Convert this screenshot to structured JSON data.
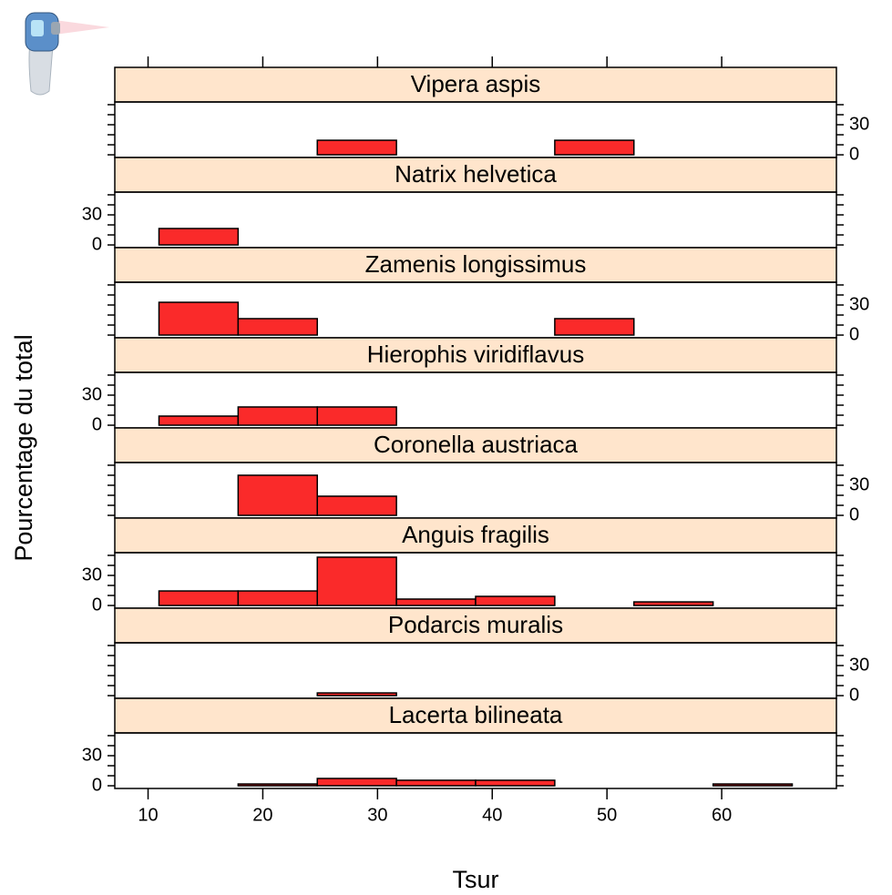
{
  "chart_data": {
    "type": "histogram",
    "xlabel": "Tsur",
    "ylabel": "Pourcentage du total",
    "xlim": [
      7.1,
      70
    ],
    "xticks": [
      10,
      20,
      30,
      40,
      50,
      60
    ],
    "ylim": [
      -2.7,
      52.7
    ],
    "yticks": [
      0,
      30
    ],
    "minor_yticks": [
      10,
      20,
      40,
      50
    ],
    "bins": [
      10.95,
      17.85,
      24.75,
      31.65,
      38.55,
      45.45,
      52.35,
      59.25,
      66.15
    ],
    "color": "#fa2a2a",
    "strip_color": "#ffe5cc",
    "panels": [
      {
        "title": "Vipera aspis",
        "values": [
          0,
          0,
          14.5,
          0,
          0,
          14.5,
          0,
          0
        ]
      },
      {
        "title": "Natrix helvetica",
        "values": [
          16.4,
          0,
          0,
          0,
          0,
          0,
          0,
          0
        ]
      },
      {
        "title": "Zamenis longissimus",
        "values": [
          32.7,
          16.4,
          0,
          0,
          0,
          16.4,
          0,
          0
        ]
      },
      {
        "title": "Hierophis viridiflavus",
        "values": [
          9.1,
          18.2,
          18.2,
          0,
          0,
          0,
          0,
          0
        ]
      },
      {
        "title": "Coronella austriaca",
        "values": [
          0,
          40,
          19.1,
          0,
          0,
          0,
          0,
          0
        ]
      },
      {
        "title": "Anguis fragilis",
        "values": [
          14.5,
          14.5,
          48.2,
          6.4,
          9.1,
          0,
          3.6,
          0
        ]
      },
      {
        "title": "Podarcis muralis",
        "values": [
          0,
          0,
          2.7,
          0,
          0,
          0,
          0,
          0
        ]
      },
      {
        "title": "Lacerta bilineata",
        "values": [
          0,
          1.8,
          7.3,
          5.5,
          5.5,
          0,
          0,
          1.8
        ]
      }
    ]
  }
}
